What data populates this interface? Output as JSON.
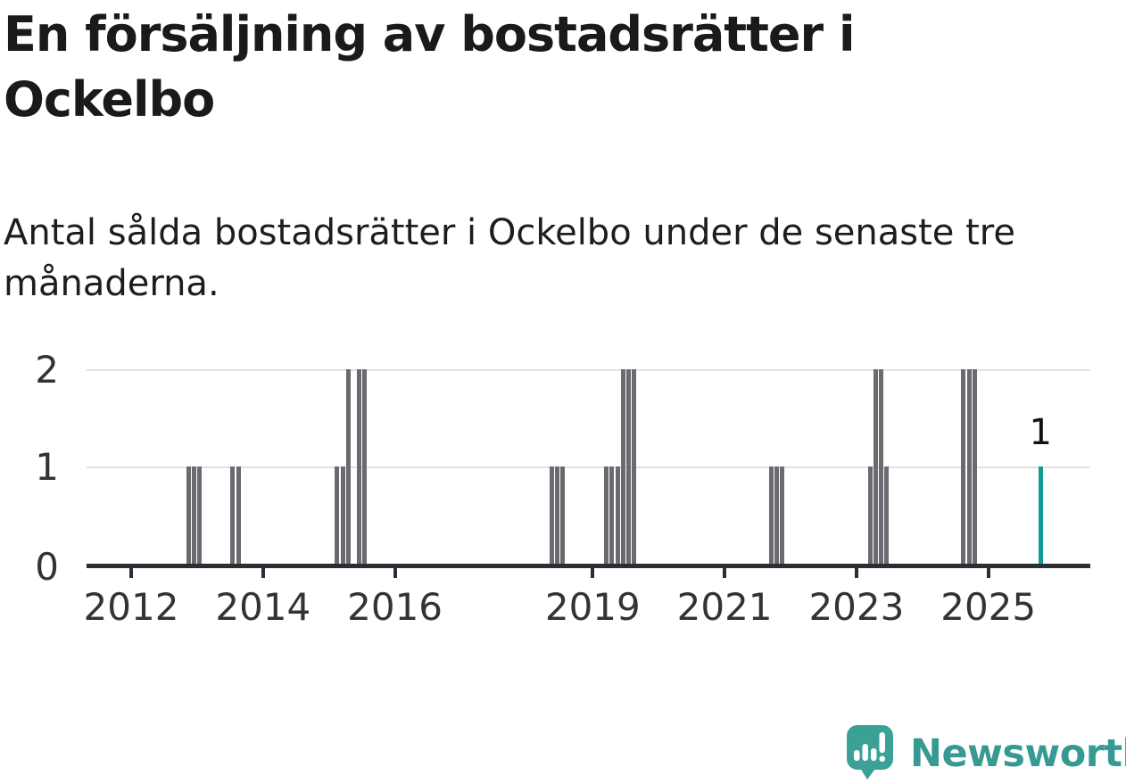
{
  "header": {
    "title": "En försäljning av bostadsrätter i Ockelbo",
    "subtitle": "Antal sålda bostadsrätter i Ockelbo under de senaste tre månaderna."
  },
  "chart_data": {
    "type": "bar",
    "title": "En försäljning av bostadsrätter i Ockelbo",
    "subtitle": "Antal sålda bostadsrätter i Ockelbo under de senaste tre månaderna.",
    "xlabel": "",
    "ylabel": "",
    "ylim": [
      0,
      2
    ],
    "grid": true,
    "x_axis": {
      "ticks": [
        2012,
        2014,
        2016,
        2019,
        2021,
        2023,
        2025
      ]
    },
    "y_axis": {
      "ticks": [
        0,
        1,
        2
      ]
    },
    "bar_color": "#6a6b70",
    "highlight_color": "#0f9b96",
    "bars": [
      {
        "month": "2012-11",
        "value": 1
      },
      {
        "month": "2012-12",
        "value": 1
      },
      {
        "month": "2013-01",
        "value": 1
      },
      {
        "month": "2013-07",
        "value": 1
      },
      {
        "month": "2013-08",
        "value": 1
      },
      {
        "month": "2015-02",
        "value": 1
      },
      {
        "month": "2015-03",
        "value": 1
      },
      {
        "month": "2015-04",
        "value": 2
      },
      {
        "month": "2015-06",
        "value": 2
      },
      {
        "month": "2015-07",
        "value": 2
      },
      {
        "month": "2018-05",
        "value": 1
      },
      {
        "month": "2018-06",
        "value": 1
      },
      {
        "month": "2018-07",
        "value": 1
      },
      {
        "month": "2019-03",
        "value": 1
      },
      {
        "month": "2019-04",
        "value": 1
      },
      {
        "month": "2019-05",
        "value": 1
      },
      {
        "month": "2019-06",
        "value": 2
      },
      {
        "month": "2019-07",
        "value": 2
      },
      {
        "month": "2019-08",
        "value": 2
      },
      {
        "month": "2021-09",
        "value": 1
      },
      {
        "month": "2021-10",
        "value": 1
      },
      {
        "month": "2021-11",
        "value": 1
      },
      {
        "month": "2023-03",
        "value": 1
      },
      {
        "month": "2023-04",
        "value": 2
      },
      {
        "month": "2023-05",
        "value": 2
      },
      {
        "month": "2023-06",
        "value": 1
      },
      {
        "month": "2024-08",
        "value": 2
      },
      {
        "month": "2024-09",
        "value": 2
      },
      {
        "month": "2024-10",
        "value": 2
      },
      {
        "month": "2025-10",
        "value": 1,
        "highlight": true,
        "label": "1"
      }
    ]
  },
  "footer": {
    "brand": "Newsworthy",
    "brand_color": "#379a92",
    "mark_color": "#3ba197"
  }
}
